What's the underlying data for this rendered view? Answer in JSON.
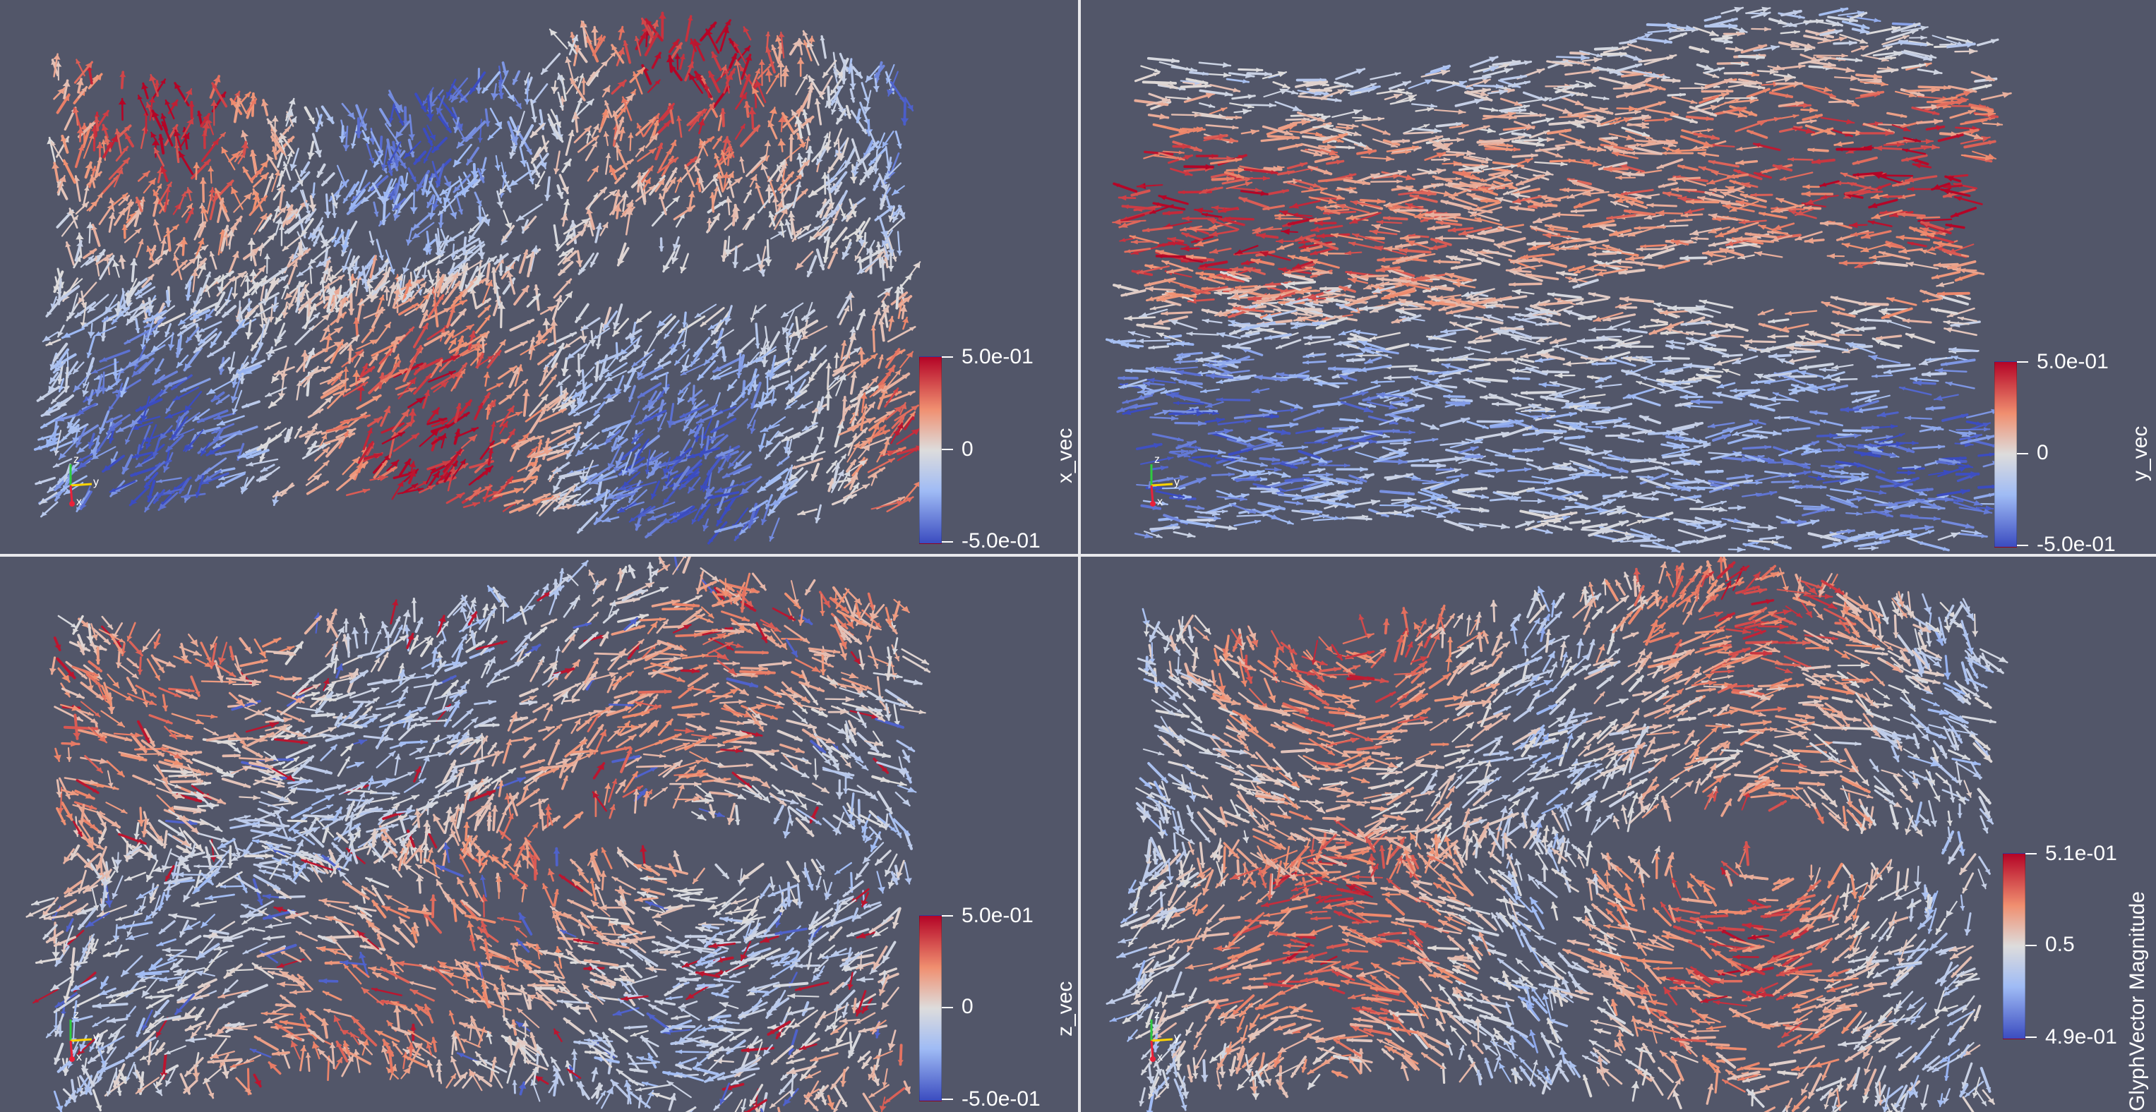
{
  "views": [
    {
      "id": "tl",
      "scalar": "x_vec",
      "legend": {
        "title": "x_vec",
        "max_label": "5.0e-01",
        "mid_label": "0",
        "min_label": "-5.0e-01"
      },
      "axes": {
        "z": "z",
        "y": "y",
        "x": "x"
      },
      "glyph_density": 2300,
      "pattern": "x"
    },
    {
      "id": "tr",
      "scalar": "y_vec",
      "legend": {
        "title": "y_vec",
        "max_label": "5.0e-01",
        "mid_label": "0",
        "min_label": "-5.0e-01"
      },
      "axes": {
        "z": "z",
        "y": "y",
        "x": "x"
      },
      "glyph_density": 2300,
      "pattern": "y"
    },
    {
      "id": "bl",
      "scalar": "z_vec",
      "legend": {
        "title": "z_vec",
        "max_label": "5.0e-01",
        "mid_label": "0",
        "min_label": "-5.0e-01"
      },
      "axes": {
        "z": "z",
        "y": "y",
        "x": "x"
      },
      "glyph_density": 2300,
      "pattern": "z"
    },
    {
      "id": "br",
      "scalar": "GlyphVector Magnitude",
      "legend": {
        "title": "GlyphVector Magnitude",
        "max_label": "5.1e-01",
        "mid_label": "0.5",
        "min_label": "4.9e-01"
      },
      "axes": {
        "z": "z",
        "y": "y",
        "x": "x"
      },
      "glyph_density": 2300,
      "pattern": "m"
    }
  ],
  "colors": {
    "background": "#525669",
    "divider": "#e8e8ec",
    "colormap": [
      "#3b4cc0",
      "#9fbbf5",
      "#dddcdc",
      "#f08f70",
      "#b40426"
    ]
  }
}
